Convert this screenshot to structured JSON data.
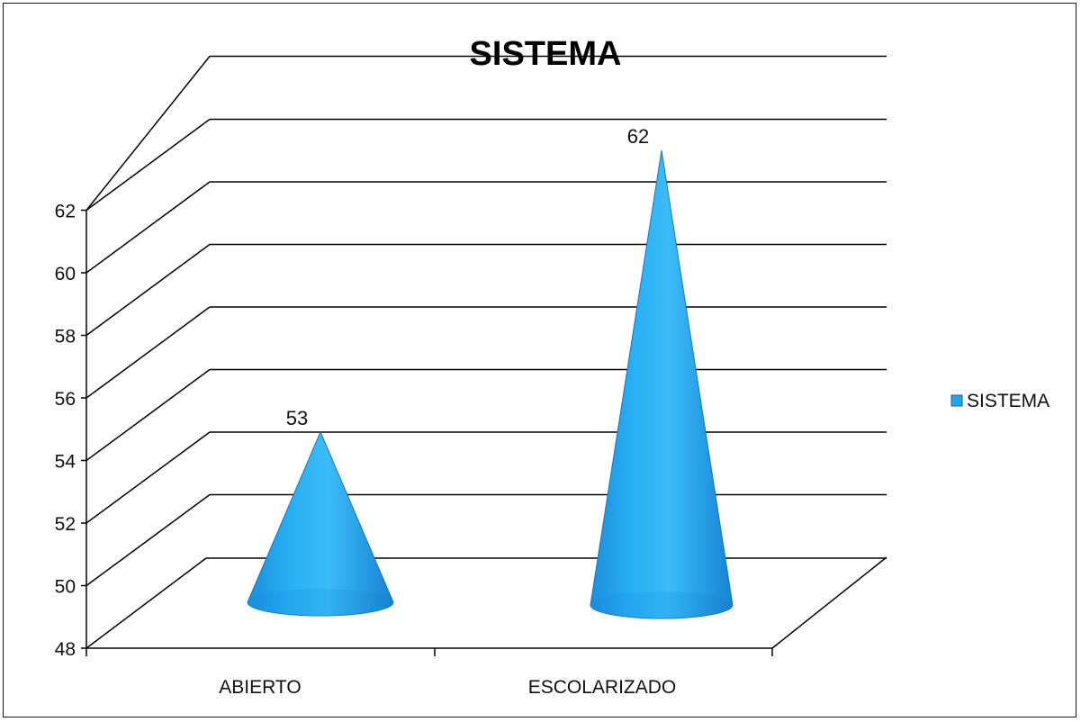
{
  "chart_data": {
    "type": "bar",
    "shape": "cone-3d",
    "title": "SISTEMA",
    "xlabel": "",
    "ylabel": "",
    "categories": [
      "ABIERTO",
      "ESCOLARIZADO"
    ],
    "series": [
      {
        "name": "SISTEMA",
        "values": [
          53,
          62
        ]
      }
    ],
    "data_labels": [
      "53",
      "62"
    ],
    "ylim": [
      48,
      62
    ],
    "yticks": [
      48,
      50,
      52,
      54,
      56,
      58,
      60,
      62
    ],
    "ytick_labels": [
      "48",
      "50",
      "52",
      "54",
      "56",
      "58",
      "60",
      "62"
    ],
    "grid": true,
    "legend": "right",
    "colors": {
      "series": "#1ea6ee",
      "series_dark": "#1577c2",
      "gridline": "#000000"
    }
  }
}
